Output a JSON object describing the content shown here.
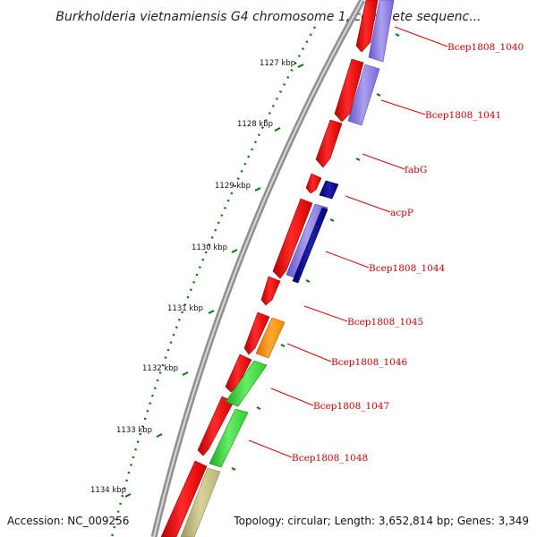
{
  "title": "Burkholderia vietnamiensis G4 chromosome 1, complete sequenc...",
  "ruler": [
    "1127 kbp",
    "1128 kbp",
    "1129 kbp",
    "1130 kbp",
    "1131 kbp",
    "1132 kbp",
    "1133 kbp",
    "1134 kbp"
  ],
  "genes": [
    "Bcep1808_1040",
    "Bcep1808_1041",
    "fabG",
    "acpP",
    "Bcep1808_1044",
    "Bcep1808_1045",
    "Bcep1808_1046",
    "Bcep1808_1047",
    "Bcep1808_1048"
  ],
  "colors": {
    "forward_cds": "#ee0000",
    "cog_purple": "#7766dd",
    "cog_navy": "#000088",
    "cog_orange": "#ff8800",
    "cog_green": "#33cc33",
    "cog_khaki": "#bbb477",
    "gc_skew_dots": "#007700",
    "backbone": "#888888",
    "label_line": "#dd0000"
  },
  "footer": {
    "accession": "Accession: NC_009256",
    "summary": "Topology: circular; Length: 3,652,814 bp; Genes: 3,349"
  }
}
